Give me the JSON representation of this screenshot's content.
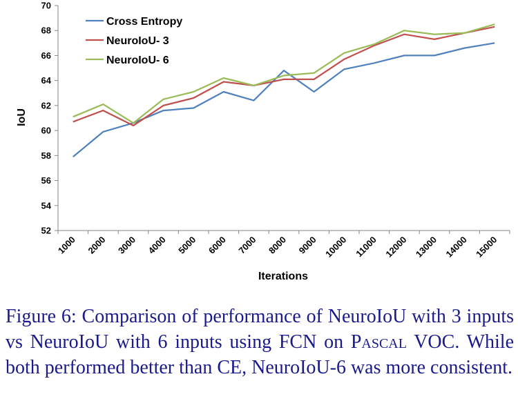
{
  "chart_data": {
    "type": "line",
    "xlabel": "Iterations",
    "ylabel": "IoU",
    "ylim": [
      52,
      70
    ],
    "yticks": [
      52,
      54,
      56,
      58,
      60,
      62,
      64,
      66,
      68,
      70
    ],
    "categories": [
      "1000",
      "2000",
      "3000",
      "4000",
      "5000",
      "6000",
      "7000",
      "8000",
      "9000",
      "10000",
      "11000",
      "12000",
      "13000",
      "14000",
      "15000"
    ],
    "legend_position": "top-left",
    "grid": false,
    "series": [
      {
        "name": "Cross Entropy",
        "color": "#4f81bd",
        "values": [
          57.9,
          59.9,
          60.6,
          61.6,
          61.8,
          63.1,
          62.4,
          64.8,
          63.1,
          64.9,
          65.4,
          66.0,
          66.0,
          66.6,
          67.0
        ]
      },
      {
        "name": "NeuroIoU- 3",
        "color": "#c0504d",
        "values": [
          60.7,
          61.6,
          60.4,
          62.0,
          62.6,
          63.9,
          63.6,
          64.1,
          64.1,
          65.7,
          66.8,
          67.7,
          67.3,
          67.8,
          68.3
        ]
      },
      {
        "name": "NeuroIoU- 6",
        "color": "#9bbb59",
        "values": [
          61.1,
          62.1,
          60.6,
          62.5,
          63.1,
          64.2,
          63.6,
          64.4,
          64.6,
          66.2,
          66.9,
          68.0,
          67.7,
          67.8,
          68.5
        ]
      }
    ]
  },
  "caption": {
    "label": "Figure 6:",
    "text_before": " Comparison of performance of NeuroIoU with 3 inputs vs NeuroIoU with 6 inputs using FCN on ",
    "dataset_name": "Pascal",
    "text_after": " VOC. While both performed better than CE, NeuroIoU-6 was more consistent."
  }
}
